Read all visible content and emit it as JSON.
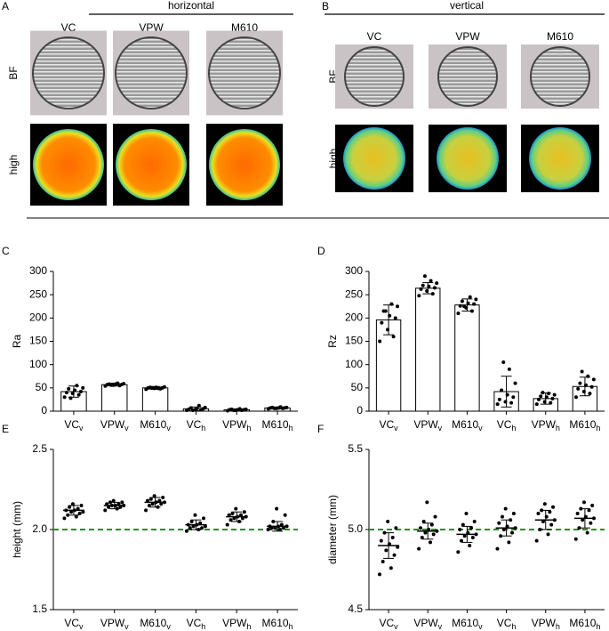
{
  "image_panels": [
    {
      "label": "A",
      "title": "horizontal",
      "columns": [
        "VC",
        "VPW",
        "M610"
      ],
      "rows": [
        "BF",
        "high"
      ]
    },
    {
      "label": "B",
      "title": "vertical",
      "columns": [
        "VC",
        "VPW",
        "M610"
      ],
      "rows": [
        "BF",
        "high"
      ]
    }
  ],
  "chart_data": [
    {
      "type": "bar",
      "label": "C",
      "y_label": "Ra",
      "color": "#ffffff",
      "categories": [
        {
          "name": "VC",
          "sub": "v"
        },
        {
          "name": "VPW",
          "sub": "v"
        },
        {
          "name": "M610",
          "sub": "v"
        },
        {
          "name": "VC",
          "sub": "h"
        },
        {
          "name": "VPW",
          "sub": "h"
        },
        {
          "name": "M610",
          "sub": "h"
        }
      ],
      "values": [
        42,
        57,
        50,
        5,
        3,
        7
      ],
      "errors": [
        12,
        3,
        3,
        4,
        2,
        2
      ],
      "points": [
        [
          30,
          35,
          38,
          40,
          42,
          45,
          48,
          50,
          55,
          28
        ],
        [
          54,
          55,
          56,
          57,
          57,
          58,
          58,
          59,
          60,
          56
        ],
        [
          47,
          48,
          49,
          50,
          50,
          51,
          51,
          52,
          49,
          50
        ],
        [
          2,
          3,
          3,
          4,
          5,
          6,
          7,
          8,
          12,
          2
        ],
        [
          1,
          2,
          2,
          3,
          3,
          3,
          4,
          4,
          5,
          2
        ],
        [
          5,
          6,
          6,
          7,
          7,
          7,
          8,
          8,
          9,
          6
        ]
      ],
      "ylim": [
        0,
        300
      ],
      "yticks": [
        0,
        50,
        100,
        150,
        200,
        250,
        300
      ]
    },
    {
      "type": "bar",
      "label": "D",
      "y_label": "Rz",
      "color": "#ffffff",
      "categories": [
        {
          "name": "VC",
          "sub": "v"
        },
        {
          "name": "VPW",
          "sub": "v"
        },
        {
          "name": "M610",
          "sub": "v"
        },
        {
          "name": "VC",
          "sub": "h"
        },
        {
          "name": "VPW",
          "sub": "h"
        },
        {
          "name": "M610",
          "sub": "h"
        }
      ],
      "values": [
        196,
        264,
        228,
        42,
        27,
        53
      ],
      "errors": [
        32,
        12,
        13,
        33,
        12,
        20
      ],
      "points": [
        [
          150,
          160,
          175,
          190,
          200,
          205,
          215,
          225,
          230,
          215
        ],
        [
          248,
          252,
          258,
          262,
          265,
          268,
          270,
          275,
          280,
          290
        ],
        [
          210,
          215,
          222,
          226,
          230,
          232,
          236,
          240,
          245,
          225
        ],
        [
          15,
          18,
          20,
          25,
          30,
          35,
          45,
          60,
          90,
          105
        ],
        [
          15,
          18,
          20,
          25,
          27,
          30,
          32,
          35,
          38,
          40
        ],
        [
          30,
          38,
          42,
          48,
          52,
          56,
          60,
          68,
          75,
          85
        ]
      ],
      "ylim": [
        0,
        300
      ],
      "yticks": [
        0,
        50,
        100,
        150,
        200,
        250,
        300
      ]
    },
    {
      "type": "dotplot",
      "label": "E",
      "y_label": "height (mm)",
      "categories": [
        {
          "name": "VC",
          "sub": "v"
        },
        {
          "name": "VPW",
          "sub": "v"
        },
        {
          "name": "M610",
          "sub": "v"
        },
        {
          "name": "VC",
          "sub": "h"
        },
        {
          "name": "VPW",
          "sub": "h"
        },
        {
          "name": "M610",
          "sub": "h"
        }
      ],
      "values": [
        2.12,
        2.15,
        2.17,
        2.03,
        2.08,
        2.02
      ],
      "errors": [
        0.03,
        0.02,
        0.03,
        0.03,
        0.03,
        0.03
      ],
      "points": [
        [
          2.07,
          2.08,
          2.09,
          2.1,
          2.11,
          2.11,
          2.12,
          2.12,
          2.13,
          2.14,
          2.15,
          2.16
        ],
        [
          2.12,
          2.13,
          2.14,
          2.14,
          2.15,
          2.15,
          2.15,
          2.16,
          2.16,
          2.17,
          2.17,
          2.18
        ],
        [
          2.12,
          2.14,
          2.15,
          2.16,
          2.16,
          2.17,
          2.17,
          2.18,
          2.18,
          2.19,
          2.2,
          2.21
        ],
        [
          1.99,
          2.0,
          2.01,
          2.01,
          2.02,
          2.02,
          2.03,
          2.03,
          2.04,
          2.05,
          2.07,
          2.09
        ],
        [
          2.03,
          2.05,
          2.06,
          2.07,
          2.07,
          2.08,
          2.08,
          2.09,
          2.09,
          2.1,
          2.11,
          2.13
        ],
        [
          2.0,
          2.0,
          2.01,
          2.01,
          2.01,
          2.02,
          2.02,
          2.02,
          2.03,
          2.05,
          2.09,
          2.13
        ]
      ],
      "ylim": [
        1.5,
        2.5
      ],
      "yticks": [
        1.5,
        {
          "value": 2,
          "label": "2.0"
        },
        2.5
      ],
      "refline": {
        "value": 2,
        "color": "#2e8b2e"
      }
    },
    {
      "type": "dotplot",
      "label": "F",
      "y_label": "diameter (mm)",
      "categories": [
        {
          "name": "VC",
          "sub": "v"
        },
        {
          "name": "VPW",
          "sub": "v"
        },
        {
          "name": "M610",
          "sub": "v"
        },
        {
          "name": "VC",
          "sub": "h"
        },
        {
          "name": "VPW",
          "sub": "h"
        },
        {
          "name": "M610",
          "sub": "h"
        }
      ],
      "values": [
        4.9,
        4.99,
        4.97,
        5.01,
        5.06,
        5.07
      ],
      "errors": [
        0.08,
        0.05,
        0.05,
        0.05,
        0.06,
        0.06
      ],
      "points": [
        [
          4.72,
          4.76,
          4.8,
          4.84,
          4.87,
          4.89,
          4.91,
          4.93,
          4.95,
          4.98,
          5.01,
          5.05
        ],
        [
          4.88,
          4.92,
          4.95,
          4.97,
          4.98,
          4.99,
          5.0,
          5.01,
          5.03,
          5.05,
          5.08,
          5.17
        ],
        [
          4.86,
          4.9,
          4.93,
          4.95,
          4.96,
          4.97,
          4.98,
          5.0,
          5.01,
          5.03,
          5.05,
          5.1
        ],
        [
          4.88,
          4.92,
          4.96,
          4.98,
          5.0,
          5.01,
          5.02,
          5.04,
          5.06,
          5.08,
          5.1,
          5.13
        ],
        [
          4.93,
          4.97,
          5.0,
          5.03,
          5.05,
          5.06,
          5.08,
          5.1,
          5.11,
          5.12,
          5.14,
          5.16
        ],
        [
          4.94,
          4.98,
          5.01,
          5.04,
          5.06,
          5.07,
          5.08,
          5.1,
          5.12,
          5.13,
          5.15,
          5.17
        ]
      ],
      "ylim": [
        4.5,
        5.5
      ],
      "yticks": [
        4.5,
        {
          "value": 5,
          "label": "5.0"
        },
        5.5
      ],
      "refline": {
        "value": 5,
        "color": "#2e8b2e"
      }
    }
  ]
}
